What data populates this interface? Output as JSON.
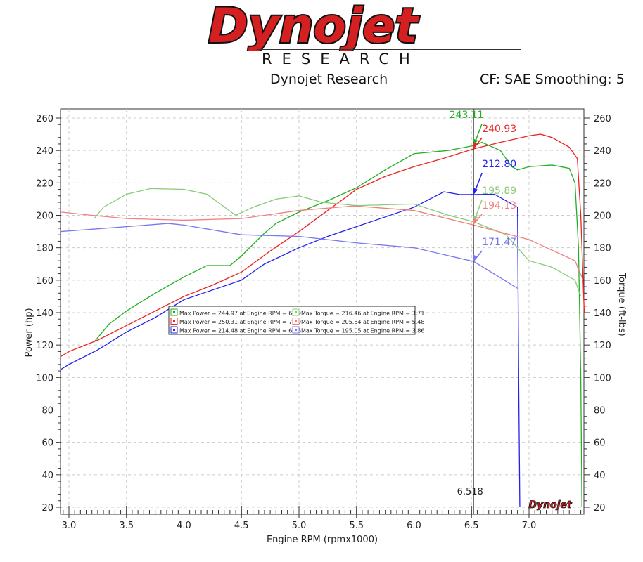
{
  "logo": {
    "brand": "Dynojet",
    "tagline": "RESEARCH"
  },
  "header": {
    "subtitle": "Dynojet Research",
    "settings": "CF: SAE Smoothing: 5"
  },
  "chart_data": {
    "type": "line",
    "xlabel": "Engine RPM (rpmx1000)",
    "ylabel": "Power (hp)",
    "y2label": "Torque (ft-lbs)",
    "xlim": [
      2.93,
      7.48
    ],
    "ylim": [
      20,
      260
    ],
    "y2lim": [
      20,
      260
    ],
    "xticks": [
      "3.0",
      "3.5",
      "4.0",
      "4.5",
      "5.0",
      "5.5",
      "6.0",
      "6.5",
      "7.0"
    ],
    "yticks": [
      "20",
      "40",
      "60",
      "80",
      "100",
      "120",
      "140",
      "160",
      "180",
      "200",
      "220",
      "240",
      "260"
    ],
    "grid": true,
    "cursor": {
      "x": 6.518,
      "label": "6.518"
    },
    "series": [
      {
        "kind": "power",
        "color": "#22b022",
        "cursor_value": "243.11",
        "points": [
          [
            3.22,
            122
          ],
          [
            3.35,
            133
          ],
          [
            3.5,
            141
          ],
          [
            3.75,
            152
          ],
          [
            4.0,
            162
          ],
          [
            4.2,
            169
          ],
          [
            4.4,
            169
          ],
          [
            4.5,
            175
          ],
          [
            4.7,
            189
          ],
          [
            4.8,
            195
          ],
          [
            5.0,
            202
          ],
          [
            5.25,
            209
          ],
          [
            5.5,
            217
          ],
          [
            5.75,
            228
          ],
          [
            6.0,
            238
          ],
          [
            6.3,
            240
          ],
          [
            6.52,
            243
          ],
          [
            6.59,
            245
          ],
          [
            6.75,
            240
          ],
          [
            6.85,
            230
          ],
          [
            6.9,
            228
          ],
          [
            7.0,
            230
          ],
          [
            7.2,
            231
          ],
          [
            7.35,
            229
          ],
          [
            7.4,
            220
          ],
          [
            7.43,
            180
          ],
          [
            7.45,
            100
          ],
          [
            7.46,
            20
          ]
        ]
      },
      {
        "kind": "power",
        "color": "#ee2222",
        "cursor_value": "240.93",
        "points": [
          [
            2.93,
            113
          ],
          [
            3.0,
            116
          ],
          [
            3.25,
            123
          ],
          [
            3.5,
            132
          ],
          [
            3.75,
            141
          ],
          [
            4.0,
            150
          ],
          [
            4.25,
            157
          ],
          [
            4.5,
            165
          ],
          [
            4.75,
            178
          ],
          [
            5.0,
            190
          ],
          [
            5.25,
            203
          ],
          [
            5.5,
            216
          ],
          [
            5.75,
            224
          ],
          [
            6.0,
            230
          ],
          [
            6.25,
            235
          ],
          [
            6.52,
            241
          ],
          [
            6.75,
            245
          ],
          [
            7.0,
            249
          ],
          [
            7.1,
            250
          ],
          [
            7.2,
            248
          ],
          [
            7.35,
            242
          ],
          [
            7.42,
            235
          ],
          [
            7.45,
            200
          ],
          [
            7.48,
            140
          ]
        ]
      },
      {
        "kind": "power",
        "color": "#2222ee",
        "cursor_value": "212.80",
        "points": [
          [
            2.93,
            105
          ],
          [
            3.0,
            108
          ],
          [
            3.25,
            117
          ],
          [
            3.5,
            128
          ],
          [
            3.75,
            137
          ],
          [
            4.0,
            148
          ],
          [
            4.25,
            154
          ],
          [
            4.5,
            160
          ],
          [
            4.7,
            170
          ],
          [
            5.0,
            180
          ],
          [
            5.25,
            187
          ],
          [
            5.5,
            193
          ],
          [
            5.75,
            199
          ],
          [
            6.0,
            205
          ],
          [
            6.26,
            214.5
          ],
          [
            6.4,
            212.8
          ],
          [
            6.52,
            212.8
          ],
          [
            6.7,
            213
          ],
          [
            6.9,
            205
          ],
          [
            6.91,
            100
          ],
          [
            6.92,
            20
          ]
        ]
      },
      {
        "kind": "torque",
        "color": "#88cc77",
        "cursor_value": "195.89",
        "points": [
          [
            3.22,
            198
          ],
          [
            3.3,
            205
          ],
          [
            3.5,
            213
          ],
          [
            3.71,
            216.5
          ],
          [
            4.0,
            216
          ],
          [
            4.2,
            213
          ],
          [
            4.45,
            200
          ],
          [
            4.6,
            205
          ],
          [
            4.8,
            210
          ],
          [
            5.0,
            212
          ],
          [
            5.2,
            208
          ],
          [
            5.5,
            206
          ],
          [
            6.0,
            207
          ],
          [
            6.3,
            200
          ],
          [
            6.52,
            196
          ],
          [
            6.8,
            188
          ],
          [
            7.0,
            172
          ],
          [
            7.2,
            168
          ],
          [
            7.4,
            160
          ],
          [
            7.45,
            150
          ]
        ]
      },
      {
        "kind": "torque",
        "color": "#f08080",
        "cursor_value": "194.13",
        "points": [
          [
            2.93,
            202
          ],
          [
            3.2,
            200
          ],
          [
            3.5,
            198
          ],
          [
            4.0,
            197
          ],
          [
            4.5,
            198
          ],
          [
            5.0,
            203
          ],
          [
            5.48,
            205.8
          ],
          [
            6.0,
            203
          ],
          [
            6.52,
            194
          ],
          [
            7.0,
            185
          ],
          [
            7.4,
            172
          ],
          [
            7.47,
            160
          ]
        ]
      },
      {
        "kind": "torque",
        "color": "#7777ee",
        "cursor_value": "171.47",
        "points": [
          [
            2.93,
            190
          ],
          [
            3.5,
            193
          ],
          [
            3.86,
            195
          ],
          [
            4.0,
            194
          ],
          [
            4.5,
            188
          ],
          [
            5.0,
            187
          ],
          [
            5.5,
            183
          ],
          [
            6.0,
            180
          ],
          [
            6.52,
            171.5
          ],
          [
            6.9,
            155
          ]
        ]
      }
    ],
    "legend": {
      "placement": "center-left",
      "entries": [
        [
          "Max Power = 244.97 at Engine RPM = 6.59",
          "Max Torque = 216.46 at Engine RPM = 3.71"
        ],
        [
          "Max Power = 250.31 at Engine RPM = 7.10",
          "Max Torque = 205.84 at Engine RPM = 5.48"
        ],
        [
          "Max Power = 214.48 at Engine RPM = 6.26",
          "Max Torque = 195.05 at Engine RPM = 3.86"
        ]
      ]
    }
  }
}
